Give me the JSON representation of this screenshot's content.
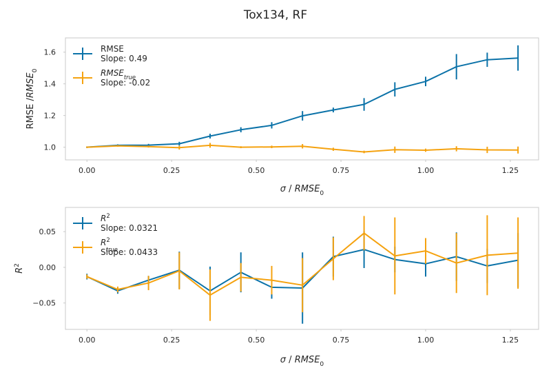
{
  "figure": {
    "title": "Tox134, RF"
  },
  "colors": {
    "blue": "#0b72a8",
    "orange": "#f5a20f",
    "frame": "#c8c8c8"
  },
  "chart_data": [
    {
      "type": "line",
      "id": "top",
      "xlabel_parts": [
        "σ",
        " / ",
        "RMSE",
        "0"
      ],
      "ylabel_parts": [
        "RMSE /",
        "RMSE",
        "0"
      ],
      "xlim": [
        -0.0635,
        1.3335
      ],
      "ylim": [
        0.92,
        1.69
      ],
      "xticks": [
        0.0,
        0.25,
        0.5,
        0.75,
        1.0,
        1.25
      ],
      "xtick_labels": [
        "0.00",
        "0.25",
        "0.50",
        "0.75",
        "1.00",
        "1.25"
      ],
      "yticks": [
        1.0,
        1.2,
        1.4,
        1.6
      ],
      "ytick_labels": [
        "1.0",
        "1.2",
        "1.4",
        "1.6"
      ],
      "legend_position": "top-left",
      "x": [
        0.0,
        0.0909,
        0.1818,
        0.2727,
        0.3636,
        0.4545,
        0.5455,
        0.6364,
        0.7273,
        0.8182,
        0.9091,
        1.0,
        1.0909,
        1.1818,
        1.2727
      ],
      "series": [
        {
          "color_key": "blue",
          "legend_label": "RMSE",
          "legend_label_sub": "",
          "slope_text": "Slope: 0.49",
          "values": [
            1.0,
            1.012,
            1.013,
            1.022,
            1.07,
            1.11,
            1.138,
            1.198,
            1.235,
            1.27,
            1.365,
            1.415,
            1.508,
            1.552,
            1.563
          ],
          "errors": [
            0.005,
            0.006,
            0.008,
            0.012,
            0.015,
            0.016,
            0.02,
            0.03,
            0.015,
            0.04,
            0.045,
            0.03,
            0.08,
            0.045,
            0.08
          ]
        },
        {
          "color_key": "orange",
          "legend_label": "RMSE",
          "legend_label_sub": "true",
          "slope_text": "Slope: -0.02",
          "values": [
            1.0,
            1.008,
            1.004,
            0.997,
            1.012,
            1.0,
            1.002,
            1.006,
            0.987,
            0.97,
            0.984,
            0.981,
            0.99,
            0.983,
            0.982
          ],
          "errors": [
            0.005,
            0.005,
            0.006,
            0.012,
            0.015,
            0.006,
            0.008,
            0.014,
            0.01,
            0.008,
            0.02,
            0.01,
            0.016,
            0.02,
            0.022
          ]
        }
      ]
    },
    {
      "type": "line",
      "id": "bottom",
      "xlabel_parts": [
        "σ",
        " / ",
        "RMSE",
        "0"
      ],
      "ylabel_parts": [
        "",
        "R",
        "2"
      ],
      "xlim": [
        -0.0635,
        1.3335
      ],
      "ylim": [
        -0.087,
        0.084
      ],
      "xticks": [
        0.0,
        0.25,
        0.5,
        0.75,
        1.0,
        1.25
      ],
      "xtick_labels": [
        "0.00",
        "0.25",
        "0.50",
        "0.75",
        "1.00",
        "1.25"
      ],
      "yticks": [
        -0.05,
        0.0,
        0.05
      ],
      "ytick_labels": [
        "−0.05",
        "0.00",
        "0.05"
      ],
      "legend_position": "top-left",
      "x": [
        0.0,
        0.0909,
        0.1818,
        0.2727,
        0.3636,
        0.4545,
        0.5455,
        0.6364,
        0.7273,
        0.8182,
        0.9091,
        1.0,
        1.0909,
        1.1818,
        1.2727
      ],
      "series": [
        {
          "color_key": "blue",
          "legend_label": "R",
          "legend_label_sup": "2",
          "legend_label_sub": "",
          "slope_text": "Slope: 0.0321",
          "values": [
            -0.013,
            -0.033,
            -0.018,
            -0.004,
            -0.033,
            -0.007,
            -0.028,
            -0.029,
            0.015,
            0.025,
            0.011,
            0.005,
            0.015,
            0.002,
            0.01
          ],
          "errors": [
            0.004,
            0.004,
            0.006,
            0.026,
            0.034,
            0.028,
            0.016,
            0.05,
            0.028,
            0.026,
            0.018,
            0.018,
            0.034,
            0.024,
            0.038
          ]
        },
        {
          "color_key": "orange",
          "legend_label": "R",
          "legend_label_sup": "2",
          "legend_label_sub": "true",
          "slope_text": "Slope: 0.0433",
          "values": [
            -0.013,
            -0.031,
            -0.022,
            -0.005,
            -0.039,
            -0.014,
            -0.018,
            -0.025,
            0.012,
            0.048,
            0.016,
            0.023,
            0.006,
            0.017,
            0.02
          ],
          "errors": [
            0.003,
            0.004,
            0.01,
            0.026,
            0.036,
            0.02,
            0.02,
            0.038,
            0.03,
            0.024,
            0.054,
            0.018,
            0.042,
            0.056,
            0.05
          ]
        }
      ]
    }
  ]
}
